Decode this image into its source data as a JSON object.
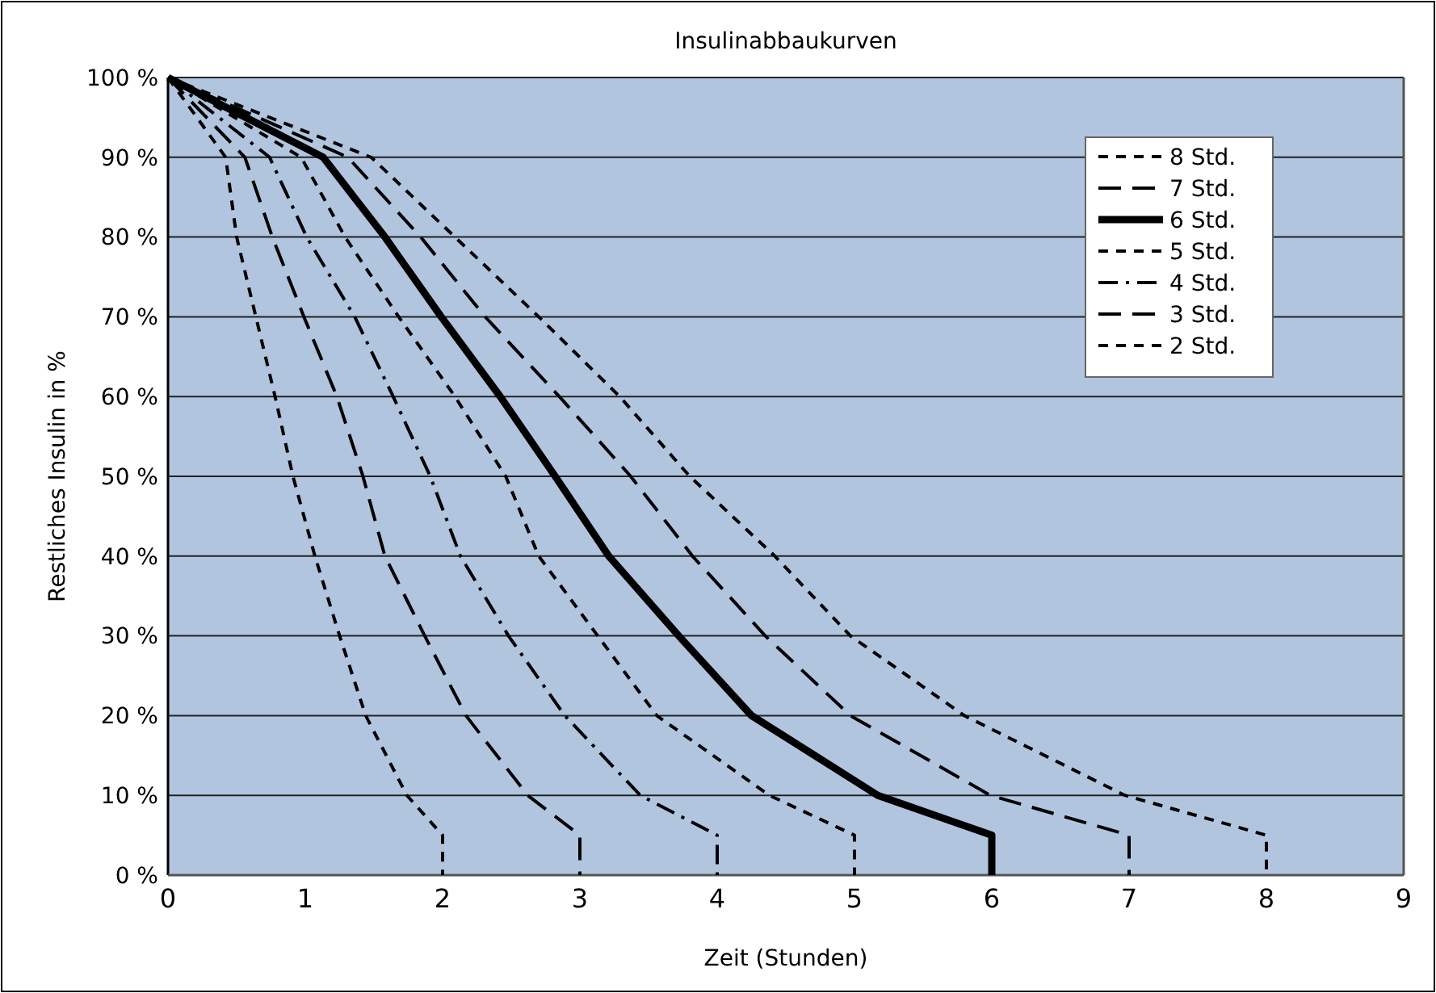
{
  "chart_data": {
    "type": "line",
    "title": "Insulinabbaukurven",
    "xlabel": "Zeit (Stunden)",
    "ylabel": "Restliches Insulin in %",
    "xlim": [
      0,
      9
    ],
    "xticks": [
      0,
      1,
      2,
      3,
      4,
      5,
      6,
      7,
      8,
      9
    ],
    "ylim": [
      0,
      100
    ],
    "yticks": [
      {
        "value": 0,
        "label": "0 %"
      },
      {
        "value": 10,
        "label": "10 %"
      },
      {
        "value": 20,
        "label": "20 %"
      },
      {
        "value": 30,
        "label": "30 %"
      },
      {
        "value": 40,
        "label": "40 %"
      },
      {
        "value": 50,
        "label": "50 %"
      },
      {
        "value": 60,
        "label": "60 %"
      },
      {
        "value": 70,
        "label": "70 %"
      },
      {
        "value": 80,
        "label": "80 %"
      },
      {
        "value": 90,
        "label": "90 %"
      },
      {
        "value": 100,
        "label": "100 %"
      }
    ],
    "grid": "y",
    "legend": "top right",
    "marker": "none",
    "series": [
      {
        "name": "8 Std.",
        "color": "#000000",
        "line_style": "dotted",
        "x": [
          0,
          1.48,
          2.09,
          2.7,
          3.29,
          3.8,
          4.42,
          4.97,
          5.8,
          6.97,
          8,
          8
        ],
        "values": [
          100,
          90,
          80,
          70,
          60,
          50,
          40,
          30,
          20,
          10,
          5,
          0
        ]
      },
      {
        "name": "7 Std.",
        "color": "#000000",
        "line_style": "dashed",
        "x": [
          0,
          1.31,
          1.84,
          2.31,
          2.85,
          3.37,
          3.82,
          4.35,
          4.97,
          5.99,
          7,
          7
        ],
        "values": [
          100,
          90,
          80,
          70,
          60,
          50,
          40,
          30,
          20,
          10,
          5,
          0
        ]
      },
      {
        "name": "6 Std.",
        "color": "#000000",
        "line_style": "solid",
        "x": [
          0,
          1.13,
          1.58,
          1.99,
          2.42,
          2.82,
          3.21,
          3.72,
          4.25,
          5.17,
          6,
          6
        ],
        "values": [
          100,
          90,
          80,
          70,
          60,
          50,
          40,
          30,
          20,
          10,
          5,
          0
        ]
      },
      {
        "name": "5 Std.",
        "color": "#000000",
        "line_style": "dotted",
        "x": [
          0,
          0.97,
          1.29,
          1.68,
          2.09,
          2.46,
          2.7,
          3.13,
          3.56,
          4.38,
          5,
          5
        ],
        "values": [
          100,
          90,
          80,
          70,
          60,
          50,
          40,
          30,
          20,
          10,
          5,
          0
        ]
      },
      {
        "name": "4 Std.",
        "color": "#000000",
        "line_style": "dashdot",
        "x": [
          0,
          0.74,
          1.01,
          1.36,
          1.64,
          1.91,
          2.13,
          2.48,
          2.89,
          3.44,
          4,
          4
        ],
        "values": [
          100,
          90,
          80,
          70,
          60,
          50,
          40,
          30,
          20,
          10,
          5,
          0
        ]
      },
      {
        "name": "3 Std.",
        "color": "#000000",
        "line_style": "dashed",
        "x": [
          0,
          0.56,
          0.76,
          0.99,
          1.23,
          1.42,
          1.58,
          1.87,
          2.17,
          2.62,
          3,
          3
        ],
        "values": [
          100,
          90,
          80,
          70,
          60,
          50,
          40,
          30,
          20,
          10,
          5,
          0
        ]
      },
      {
        "name": "2 Std.",
        "color": "#000000",
        "line_style": "dotted",
        "x": [
          0,
          0.42,
          0.5,
          0.64,
          0.78,
          0.91,
          1.07,
          1.25,
          1.44,
          1.74,
          2,
          2
        ],
        "values": [
          100,
          90,
          80,
          70,
          60,
          50,
          40,
          30,
          20,
          10,
          5,
          0
        ]
      }
    ]
  }
}
